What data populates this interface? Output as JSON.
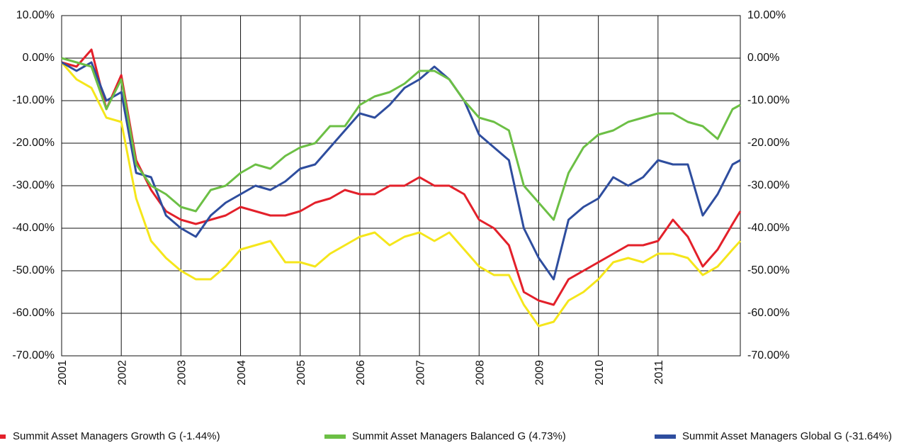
{
  "chart_data": {
    "type": "line",
    "x": [
      2001,
      2001.25,
      2001.5,
      2001.75,
      2002,
      2002.25,
      2002.5,
      2002.75,
      2003,
      2003.25,
      2003.5,
      2003.75,
      2004,
      2004.25,
      2004.5,
      2004.75,
      2005,
      2005.25,
      2005.5,
      2005.75,
      2006,
      2006.25,
      2006.5,
      2006.75,
      2007,
      2007.25,
      2007.5,
      2007.75,
      2008,
      2008.25,
      2008.5,
      2008.75,
      2009,
      2009.25,
      2009.5,
      2009.75,
      2010,
      2010.25,
      2010.5,
      2010.75,
      2011,
      2011.25,
      2011.5,
      2011.75,
      2012,
      2012.25,
      2012.38
    ],
    "series": [
      {
        "name": "Summit Asset Managers Growth G (-1.44%)",
        "color": "#e3202a",
        "values": [
          -1,
          -2,
          2,
          -12,
          -4,
          -24,
          -31,
          -36,
          -38,
          -39,
          -38,
          -37,
          -35,
          -36,
          -37,
          -37,
          -36,
          -34,
          -33,
          -31,
          -32,
          -32,
          -30,
          -30,
          -28,
          -30,
          -30,
          -32,
          -38,
          -40,
          -44,
          -55,
          -57,
          -58,
          -52,
          -50,
          -48,
          -46,
          -44,
          -44,
          -43,
          -38,
          -42,
          -49,
          -45,
          -39,
          -36
        ]
      },
      {
        "name": "Summit Asset Managers Balanced G (4.73%)",
        "color": "#6cbf45",
        "values": [
          0,
          -1,
          -2,
          -12,
          -5,
          -25,
          -30,
          -32,
          -35,
          -36,
          -31,
          -30,
          -27,
          -25,
          -26,
          -23,
          -21,
          -20,
          -16,
          -16,
          -11,
          -9,
          -8,
          -6,
          -3,
          -3,
          -5,
          -10,
          -14,
          -15,
          -17,
          -30,
          -34,
          -38,
          -27,
          -21,
          -18,
          -17,
          -15,
          -14,
          -13,
          -13,
          -15,
          -16,
          -19,
          -12,
          -11
        ]
      },
      {
        "name": "Summit Asset Managers Global G  (-31.64%)",
        "color": "#2e4d9e",
        "values": [
          -1,
          -3,
          -1,
          -10,
          -8,
          -27,
          -28,
          -37,
          -40,
          -42,
          -37,
          -34,
          -32,
          -30,
          -31,
          -29,
          -26,
          -25,
          -21,
          -17,
          -13,
          -14,
          -11,
          -7,
          -5,
          -2,
          -5,
          -10,
          -18,
          -21,
          -24,
          -40,
          -47,
          -52,
          -38,
          -35,
          -33,
          -28,
          -30,
          -28,
          -24,
          -25,
          -25,
          -37,
          -32,
          -25,
          -24
        ]
      },
      {
        "color": "#f5e61b",
        "values": [
          -1,
          -5,
          -7,
          -14,
          -15,
          -33,
          -43,
          -47,
          -50,
          -52,
          -52,
          -49,
          -45,
          -44,
          -43,
          -48,
          -48,
          -49,
          -46,
          -44,
          -42,
          -41,
          -44,
          -42,
          -41,
          -43,
          -41,
          -45,
          -49,
          -51,
          -51,
          -58,
          -63,
          -62,
          -57,
          -55,
          -52,
          -48,
          -47,
          -48,
          -46,
          -46,
          -47,
          -51,
          -49,
          -45,
          -43
        ]
      }
    ],
    "xlim": [
      2001,
      2012.38
    ],
    "xticks": [
      2001,
      2002,
      2003,
      2004,
      2005,
      2006,
      2007,
      2008,
      2009,
      2010,
      2011
    ],
    "ylim": [
      -70,
      10
    ],
    "yticks": [
      {
        "value": 10,
        "label": "10.00%"
      },
      {
        "value": 0,
        "label": "0.00%"
      },
      {
        "value": -10,
        "label": "-10.00%"
      },
      {
        "value": -20,
        "label": "-20.00%"
      },
      {
        "value": -30,
        "label": "-30.00%"
      },
      {
        "value": -40,
        "label": "-40.00%"
      },
      {
        "value": -50,
        "label": "-50.00%"
      },
      {
        "value": -60,
        "label": "-60.00%"
      },
      {
        "value": -70,
        "label": "-70.00%"
      }
    ],
    "grid": true
  }
}
